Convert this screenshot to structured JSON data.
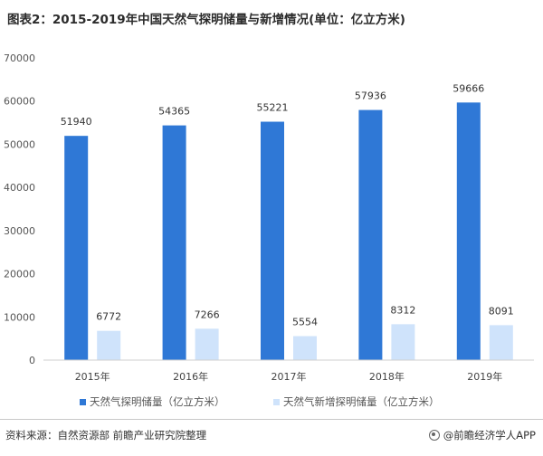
{
  "title": "图表2：2015-2019年中国天然气探明储量与新增情况(单位：亿立方米)",
  "chart_data": {
    "type": "bar",
    "categories": [
      "2015年",
      "2016年",
      "2017年",
      "2018年",
      "2019年"
    ],
    "series": [
      {
        "name": "天然气探明储量（亿立方米）",
        "values": [
          51940,
          54365,
          55221,
          57936,
          59666
        ],
        "color": "#2f78d6"
      },
      {
        "name": "天然气新增探明储量（亿立方米）",
        "values": [
          6772,
          7266,
          5554,
          8312,
          8091
        ],
        "color": "#cfe3fb"
      }
    ],
    "ylim": [
      0,
      70000
    ],
    "yticks": [
      0,
      10000,
      20000,
      30000,
      40000,
      50000,
      60000,
      70000
    ],
    "grid": false,
    "legend": "bottom"
  },
  "footer": {
    "source": "资料来源：自然资源部 前瞻产业研究院整理",
    "credit": "@前瞻经济学人APP"
  }
}
